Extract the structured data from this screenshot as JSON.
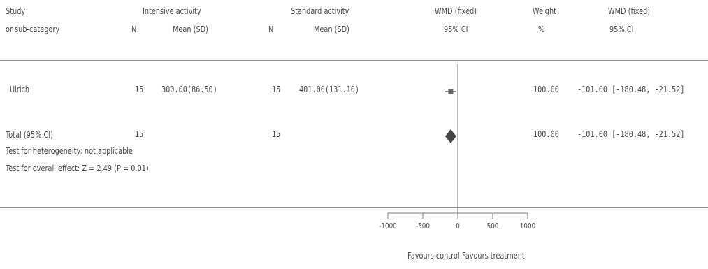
{
  "header": {
    "study_line1": "Study",
    "study_line2": "or sub-category",
    "intensive_title": "Intensive activity",
    "n_label": "N",
    "mean_sd": "Mean (SD)",
    "standard_title": "Standard activity",
    "wmd_title": "WMD (fixed)",
    "ci_label": "95% CI",
    "weight_title": "Weight",
    "weight_unit": "%",
    "wmd_title_right": "WMD (fixed)",
    "ci_label_right": "95% CI"
  },
  "rows": [
    {
      "study": "Ulrich",
      "n1": "15",
      "mean1": "300.00(86.50)",
      "n2": "15",
      "mean2": "401.00(131.10)",
      "weight": "100.00",
      "wmd_ci": "-101.00 [-180.48, -21.52]"
    }
  ],
  "total": {
    "label": "Total (95% CI)",
    "n1": "15",
    "n2": "15",
    "weight": "100.00",
    "wmd_ci": "-101.00 [-180.48, -21.52]"
  },
  "footnotes": {
    "heterogeneity": "Test for heterogeneity: not applicable",
    "overall": "Test for overall effect: Z = 2.49 (P = 0.01)"
  },
  "axis": {
    "favours_left": "Favours control",
    "favours_right": "Favours treatment"
  },
  "chart_data": {
    "type": "forest",
    "xlim": [
      -1000,
      1000
    ],
    "ticks": [
      -1000,
      -500,
      0,
      500,
      1000
    ],
    "studies": [
      {
        "name": "Ulrich",
        "estimate": -101.0,
        "ci": [
          -180.48,
          -21.52
        ],
        "weight": 100.0
      }
    ],
    "pooled": {
      "name": "Total (95% CI)",
      "estimate": -101.0,
      "ci": [
        -180.48,
        -21.52
      ]
    }
  }
}
